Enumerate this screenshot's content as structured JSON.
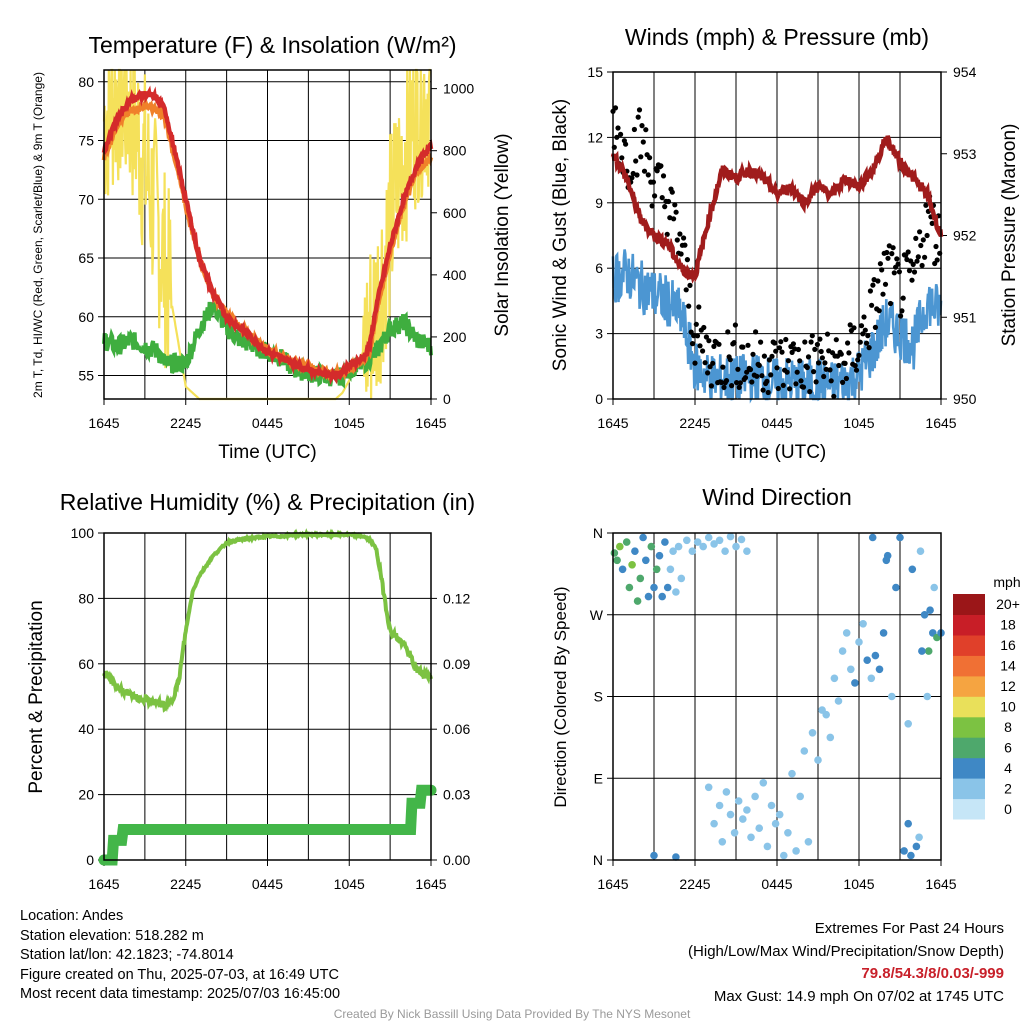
{
  "chart_data": [
    {
      "type": "line",
      "title": "Temperature (F) & Insolation (W/m²)",
      "xlabel": "Time (UTC)",
      "ylabel": "2m T, Td, HI/WC (Red, Green, Scarlet/Blue) & 9m T (Orange)",
      "ylabel_right": "Solar Insolation (Yellow)",
      "ylim": [
        53,
        81
      ],
      "ylim_right": [
        0,
        1060
      ],
      "yticks": [
        "55",
        "60",
        "65",
        "70",
        "75",
        "80"
      ],
      "yticks_right": [
        "0",
        "200",
        "400",
        "600",
        "800",
        "1000"
      ],
      "xticks": [
        "1645",
        "2245",
        "0445",
        "1045",
        "1645"
      ],
      "x_hours": [
        0,
        1,
        2,
        3,
        4,
        4.5,
        5,
        6,
        7,
        8,
        9,
        10,
        11,
        12,
        13,
        14,
        15,
        16,
        17,
        17.5,
        18,
        19,
        19.5,
        20,
        21,
        22,
        23,
        24
      ],
      "series": [
        {
          "name": "2m T",
          "color": "#d42b2b",
          "values": [
            74,
            77,
            78.5,
            79,
            78.5,
            77.5,
            75,
            70,
            65,
            62,
            60,
            59,
            58,
            57,
            56.5,
            56,
            55.5,
            55.2,
            55,
            55.3,
            55.8,
            56.5,
            57.5,
            61,
            66,
            70,
            73,
            74.5
          ]
        },
        {
          "name": "9m T",
          "color": "#f0812a",
          "values": [
            73.5,
            76.5,
            77.5,
            78,
            77.5,
            76.8,
            74.5,
            69.5,
            65,
            62,
            60.2,
            59.2,
            58.2,
            57.2,
            56.7,
            56.2,
            55.7,
            55.4,
            55.2,
            55.2,
            55.6,
            56.2,
            57,
            60.5,
            65.5,
            69.5,
            72.5,
            73.5
          ]
        },
        {
          "name": "Dewpoint",
          "color": "#3fae3f",
          "values": [
            58,
            57.5,
            58,
            57.5,
            57,
            56,
            56,
            56,
            59,
            61,
            59,
            58,
            57.5,
            57,
            56.5,
            55.5,
            55.2,
            55,
            54.8,
            55,
            55.5,
            56,
            56.5,
            57,
            59,
            59.5,
            58,
            57.5
          ]
        },
        {
          "name": "Solar Insolation",
          "color": "#f5e15a",
          "axis": "right",
          "values": [
            900,
            1000,
            950,
            750,
            550,
            420,
            300,
            40,
            0,
            0,
            0,
            0,
            0,
            0,
            0,
            0,
            0,
            0,
            0,
            20,
            60,
            150,
            220,
            300,
            550,
            800,
            950,
            1000
          ]
        }
      ],
      "grid": true
    },
    {
      "type": "line",
      "title": "Winds (mph) & Pressure (mb)",
      "xlabel": "Time (UTC)",
      "ylabel": "Sonic Wind & Gust (Blue, Black)",
      "ylabel_right": "Station Pressure (Maroon)",
      "ylim": [
        0,
        15
      ],
      "ylim_right": [
        950,
        954
      ],
      "yticks": [
        "0",
        "3",
        "6",
        "9",
        "12",
        "15"
      ],
      "yticks_right": [
        "950",
        "951",
        "952",
        "953",
        "954"
      ],
      "xticks": [
        "1645",
        "2245",
        "0445",
        "1045",
        "1645"
      ],
      "x_hours": [
        0,
        1,
        2,
        3,
        4,
        5,
        6,
        7,
        8,
        9,
        10,
        11,
        12,
        13,
        14,
        15,
        16,
        17,
        18,
        19,
        20,
        21,
        22,
        23,
        24
      ],
      "series": [
        {
          "name": "Sonic Wind",
          "color": "#4c96d2",
          "values": [
            5.5,
            5.8,
            5.2,
            4.8,
            4.5,
            3.8,
            1.5,
            1.0,
            0.9,
            0.8,
            1.0,
            0.9,
            0.7,
            0.8,
            0.6,
            0.8,
            0.6,
            0.8,
            1.2,
            2.2,
            3.5,
            3.0,
            2.5,
            4.5,
            4.0
          ]
        },
        {
          "name": "Gust",
          "color": "#000000",
          "style": "points",
          "values": [
            13,
            11,
            12,
            10,
            9,
            7,
            3,
            2,
            1.8,
            2,
            1.6,
            1.8,
            1.5,
            1.7,
            1.5,
            1.8,
            1.5,
            1.7,
            2.5,
            4,
            6,
            5,
            5.5,
            8.5,
            7
          ]
        },
        {
          "name": "Station Pressure",
          "color": "#a01c1c",
          "axis": "right",
          "values": [
            953.0,
            952.7,
            952.2,
            952.0,
            951.9,
            951.6,
            951.5,
            952.2,
            952.8,
            952.7,
            952.8,
            952.7,
            952.5,
            952.6,
            952.4,
            952.6,
            952.5,
            952.7,
            952.6,
            952.8,
            953.2,
            952.9,
            952.7,
            952.5,
            952.0
          ]
        }
      ],
      "grid": true
    },
    {
      "type": "line",
      "title": "Relative Humidity (%) & Precipitation (in)",
      "ylabel": "Percent & Precipitation",
      "ylim": [
        0,
        100
      ],
      "ylim_right": [
        0,
        0.15
      ],
      "yticks": [
        "0",
        "20",
        "40",
        "60",
        "80",
        "100"
      ],
      "yticks_right": [
        "0.00",
        "0.03",
        "0.06",
        "0.09",
        "0.12"
      ],
      "xticks": [
        "1645",
        "2245",
        "0445",
        "1045",
        "1645"
      ],
      "x_hours": [
        0,
        1,
        2,
        3,
        4,
        4.5,
        5,
        5.5,
        6,
        6.5,
        7,
        8,
        9,
        10,
        11,
        12,
        13,
        14,
        15,
        16,
        17,
        18,
        19,
        19.5,
        20,
        21,
        22,
        23,
        24
      ],
      "series": [
        {
          "name": "Relative Humidity",
          "color": "#7cc242",
          "values": [
            57,
            53,
            50,
            49,
            48,
            47,
            49,
            55,
            70,
            82,
            87,
            93,
            97,
            98,
            98.5,
            99,
            99,
            99.5,
            99.5,
            99.5,
            99.5,
            99.5,
            99,
            98,
            95,
            70,
            66,
            58,
            56
          ]
        },
        {
          "name": "Precipitation",
          "color": "#43b649",
          "axis": "right",
          "style": "thick",
          "x_hours": [
            0,
            0.6,
            0.7,
            1.3,
            1.4,
            22.5,
            22.6,
            23.2,
            23.3,
            24
          ],
          "values": [
            0,
            0,
            0.009,
            0.009,
            0.014,
            0.014,
            0.026,
            0.026,
            0.032,
            0.032
          ]
        }
      ],
      "grid": true
    },
    {
      "type": "scatter",
      "title": "Wind Direction",
      "ylabel": "Direction (Colored By Speed)",
      "yticks": [
        "N",
        "E",
        "S",
        "W",
        "N"
      ],
      "xticks": [
        "1645",
        "2245",
        "0445",
        "1045",
        "1645"
      ],
      "legend_title": "mph",
      "legend_labels": [
        "0",
        "2",
        "4",
        "6",
        "8",
        "10",
        "12",
        "14",
        "16",
        "18",
        "20+"
      ],
      "legend_colors": [
        "#c6e6f7",
        "#8ac4e8",
        "#3f88c5",
        "#4ea86c",
        "#7cc242",
        "#e9e05a",
        "#f5a441",
        "#f07034",
        "#e0402a",
        "#c81e27",
        "#9b1618"
      ],
      "points": [
        [
          0.1,
          338,
          5
        ],
        [
          0.3,
          330,
          6
        ],
        [
          0.5,
          345,
          7
        ],
        [
          0.7,
          320,
          4
        ],
        [
          1.0,
          350,
          6
        ],
        [
          1.2,
          300,
          5
        ],
        [
          1.4,
          325,
          7
        ],
        [
          1.6,
          340,
          4
        ],
        [
          1.8,
          285,
          6
        ],
        [
          2.0,
          310,
          5
        ],
        [
          2.2,
          355,
          4
        ],
        [
          2.4,
          330,
          3
        ],
        [
          2.6,
          290,
          4
        ],
        [
          2.8,
          345,
          5
        ],
        [
          3.0,
          300,
          4
        ],
        [
          3.2,
          320,
          6
        ],
        [
          3.4,
          335,
          3
        ],
        [
          3.6,
          290,
          4
        ],
        [
          3.8,
          350,
          3
        ],
        [
          4.0,
          300,
          3
        ],
        [
          4.2,
          320,
          2
        ],
        [
          4.4,
          340,
          1
        ],
        [
          4.6,
          295,
          2
        ],
        [
          4.8,
          345,
          1
        ],
        [
          5.0,
          310,
          2
        ],
        [
          5.4,
          352,
          1
        ],
        [
          5.8,
          340,
          1
        ],
        [
          6.2,
          350,
          1
        ],
        [
          6.6,
          345,
          1
        ],
        [
          7.0,
          355,
          1
        ],
        [
          7.4,
          348,
          2
        ],
        [
          7.8,
          352,
          1
        ],
        [
          8.2,
          340,
          1
        ],
        [
          8.6,
          356,
          1
        ],
        [
          9.0,
          345,
          1
        ],
        [
          9.4,
          353,
          2
        ],
        [
          9.8,
          340,
          1
        ],
        [
          3.0,
          5,
          4
        ],
        [
          4.6,
          3,
          3
        ],
        [
          7.0,
          80,
          2
        ],
        [
          7.4,
          40,
          1
        ],
        [
          7.8,
          60,
          1
        ],
        [
          8.0,
          20,
          1
        ],
        [
          8.3,
          75,
          1
        ],
        [
          8.6,
          50,
          1
        ],
        [
          8.9,
          30,
          1
        ],
        [
          9.2,
          65,
          1
        ],
        [
          9.5,
          45,
          1
        ],
        [
          9.8,
          55,
          1
        ],
        [
          10.1,
          25,
          1
        ],
        [
          10.4,
          70,
          1
        ],
        [
          10.7,
          35,
          1
        ],
        [
          11.0,
          85,
          1
        ],
        [
          11.3,
          15,
          1
        ],
        [
          11.6,
          60,
          1
        ],
        [
          11.9,
          40,
          1
        ],
        [
          12.2,
          50,
          1
        ],
        [
          12.5,
          5,
          1
        ],
        [
          12.8,
          30,
          1
        ],
        [
          13.1,
          95,
          1
        ],
        [
          13.4,
          10,
          1
        ],
        [
          13.7,
          70,
          1
        ],
        [
          14.0,
          120,
          1
        ],
        [
          14.3,
          20,
          1
        ],
        [
          14.6,
          140,
          1
        ],
        [
          15.0,
          110,
          1
        ],
        [
          15.3,
          165,
          1
        ],
        [
          15.6,
          160,
          1
        ],
        [
          15.9,
          135,
          1
        ],
        [
          16.2,
          200,
          1
        ],
        [
          16.5,
          175,
          1
        ],
        [
          16.8,
          230,
          1
        ],
        [
          17.1,
          250,
          1
        ],
        [
          17.4,
          210,
          2
        ],
        [
          17.7,
          195,
          3
        ],
        [
          18.0,
          240,
          2
        ],
        [
          18.3,
          260,
          1
        ],
        [
          18.6,
          220,
          3
        ],
        [
          18.9,
          200,
          2
        ],
        [
          19.2,
          225,
          3
        ],
        [
          19.5,
          210,
          4
        ],
        [
          19.8,
          250,
          3
        ],
        [
          20.1,
          335,
          4
        ],
        [
          20.4,
          180,
          2
        ],
        [
          20.7,
          300,
          3
        ],
        [
          21.0,
          355,
          4
        ],
        [
          21.3,
          10,
          4
        ],
        [
          21.6,
          150,
          2
        ],
        [
          21.9,
          320,
          3
        ],
        [
          22.2,
          15,
          4
        ],
        [
          22.5,
          340,
          2
        ],
        [
          22.8,
          270,
          3
        ],
        [
          23.1,
          230,
          5
        ],
        [
          23.4,
          250,
          4
        ],
        [
          23.7,
          245,
          6
        ],
        [
          24.0,
          250,
          4
        ],
        [
          22.6,
          230,
          3
        ],
        [
          21.6,
          40,
          3
        ],
        [
          21.8,
          5,
          4
        ],
        [
          22.4,
          25,
          2
        ],
        [
          23.2,
          275,
          3
        ],
        [
          23.5,
          300,
          2
        ],
        [
          23.0,
          180,
          2
        ],
        [
          19.0,
          355,
          4
        ],
        [
          20.0,
          330,
          3
        ]
      ],
      "grid": true
    }
  ],
  "info": {
    "location": "Location: Andes",
    "elevation": "Station elevation: 518.282 m",
    "latlon": "Station lat/lon: 42.1823; -74.8014",
    "created": "Figure created on Thu, 2025-07-03, at 16:49 UTC",
    "recent": "Most recent data timestamp: 2025/07/03 16:45:00"
  },
  "extremes": {
    "title": "Extremes For Past 24 Hours",
    "subtitle": "(High/Low/Max Wind/Precipitation/Snow Depth)",
    "values": "79.8/54.3/8/0.03/-999",
    "gust": "Max Gust: 14.9 mph On 07/02 at 1745 UTC"
  },
  "credit": "Created By Nick Bassill Using Data Provided By The NYS Mesonet"
}
